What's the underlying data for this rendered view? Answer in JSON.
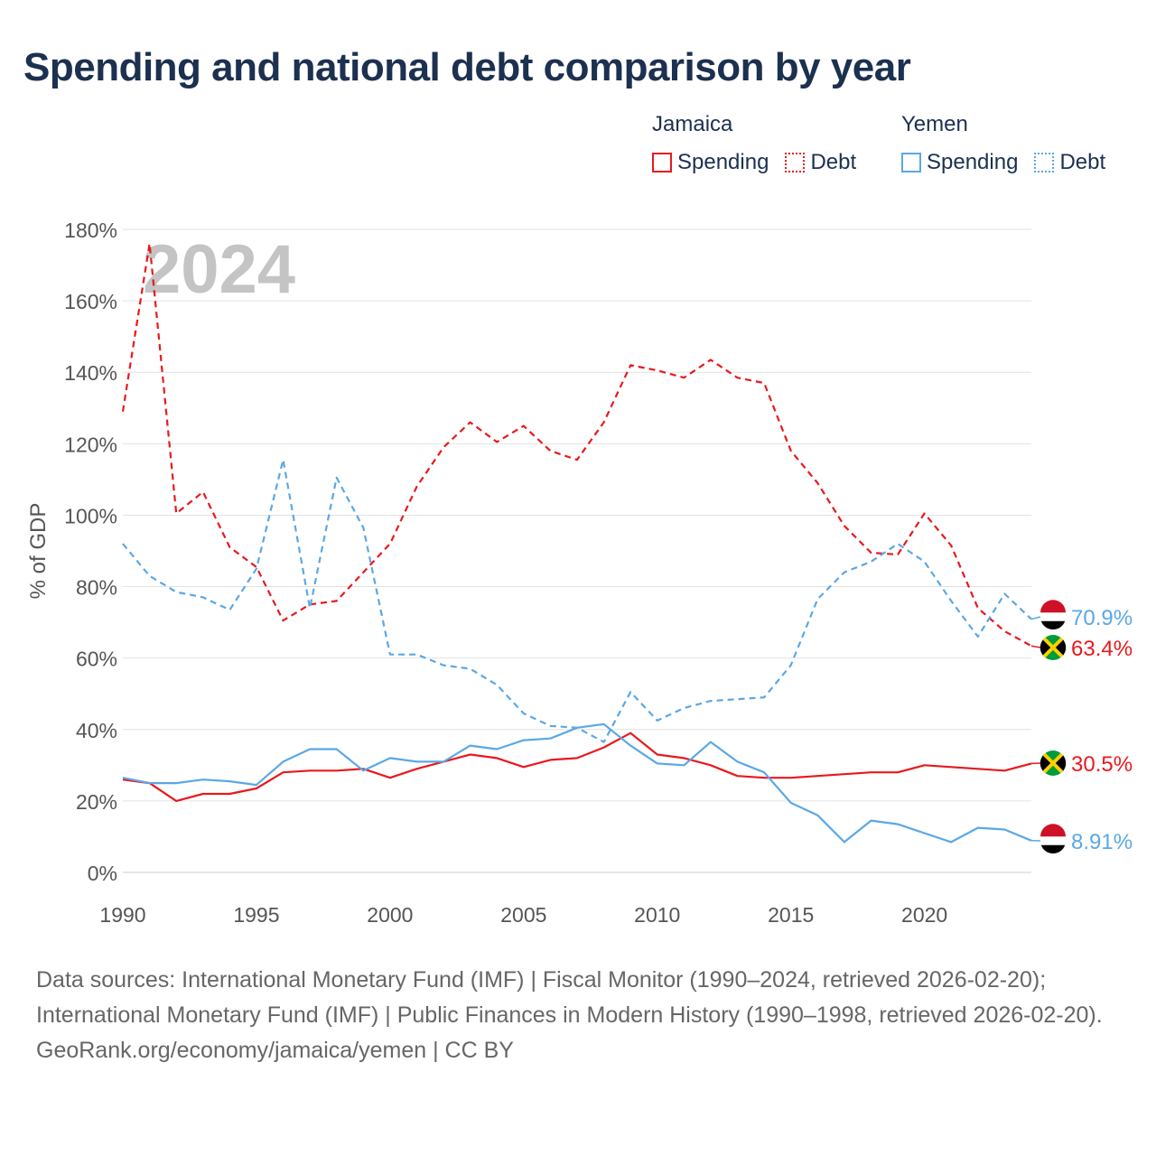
{
  "title": "Spending and national debt comparison by year",
  "legend": {
    "groups": [
      {
        "name": "Jamaica",
        "items": [
          {
            "label": "Spending"
          },
          {
            "label": "Debt"
          }
        ]
      },
      {
        "name": "Yemen",
        "items": [
          {
            "label": "Spending"
          },
          {
            "label": "Debt"
          }
        ]
      }
    ]
  },
  "colors": {
    "jamaica": "#e8191d",
    "yemen": "#5aa8e6",
    "grid": "#e2e2e2",
    "axis_text": "#555555",
    "year_watermark": "#c4c4c4"
  },
  "chart_data": {
    "type": "line",
    "watermark_year": "2024",
    "ylabel": "% of GDP",
    "xlim": [
      1990,
      2024
    ],
    "ylim": [
      0,
      180
    ],
    "yticks": [
      0,
      20,
      40,
      60,
      80,
      100,
      120,
      140,
      160,
      180
    ],
    "ytick_labels": [
      "0%",
      "20%",
      "40%",
      "60%",
      "80%",
      "100%",
      "120%",
      "140%",
      "160%",
      "180%"
    ],
    "xticks": [
      1990,
      1995,
      2000,
      2005,
      2010,
      2015,
      2020
    ],
    "xtick_labels": [
      "1990",
      "1995",
      "2000",
      "2005",
      "2010",
      "2015",
      "2020"
    ],
    "x": [
      1990,
      1991,
      1992,
      1993,
      1994,
      1995,
      1996,
      1997,
      1998,
      1999,
      2000,
      2001,
      2002,
      2003,
      2004,
      2005,
      2006,
      2007,
      2008,
      2009,
      2010,
      2011,
      2012,
      2013,
      2014,
      2015,
      2016,
      2017,
      2018,
      2019,
      2020,
      2021,
      2022,
      2023,
      2024
    ],
    "series": [
      {
        "name": "Jamaica Debt",
        "country": "jamaica",
        "style": "dashed",
        "values": [
          129,
          176,
          100.5,
          106.5,
          91,
          85.5,
          70.5,
          75,
          76,
          84,
          92,
          108,
          119,
          126,
          120.5,
          125,
          118,
          115.5,
          126,
          142,
          140.5,
          138.5,
          143.5,
          138.5,
          137,
          118,
          109,
          97,
          89.5,
          89,
          100.5,
          91.5,
          74,
          67.5,
          63.4
        ],
        "end_label": "63.4%"
      },
      {
        "name": "Yemen Debt",
        "country": "yemen",
        "style": "dashed",
        "values": [
          92,
          83,
          78.5,
          77,
          73.5,
          85,
          115.5,
          74,
          110.5,
          96.5,
          61,
          61,
          58,
          57,
          52.5,
          44.5,
          41,
          40.5,
          36.5,
          50.5,
          42.5,
          46,
          48,
          48.5,
          49,
          58,
          76.5,
          84,
          87,
          92,
          87,
          76,
          66,
          78,
          70.9
        ],
        "end_label": "70.9%"
      },
      {
        "name": "Jamaica Spending",
        "country": "jamaica",
        "style": "solid",
        "values": [
          26,
          25,
          20,
          22,
          22,
          23.5,
          28,
          28.5,
          28.5,
          29,
          26.5,
          29,
          31,
          33,
          32,
          29.5,
          31.5,
          32,
          35,
          39,
          33,
          32,
          30,
          27,
          26.5,
          26.5,
          27,
          27.5,
          28,
          28,
          30,
          29.5,
          29,
          28.5,
          30.5
        ],
        "end_label": "30.5%"
      },
      {
        "name": "Yemen Spending",
        "country": "yemen",
        "style": "solid",
        "values": [
          26.5,
          25,
          25,
          26,
          25.5,
          24.5,
          31,
          34.5,
          34.5,
          28.5,
          32,
          31,
          31,
          35.5,
          34.5,
          37,
          37.5,
          40.5,
          41.5,
          35.5,
          30.5,
          30,
          36.5,
          31,
          28,
          19.5,
          16,
          8.5,
          14.5,
          13.5,
          11,
          8.5,
          12.5,
          12,
          8.91
        ],
        "end_label": "8.91%"
      }
    ]
  },
  "footer": {
    "sources": "Data sources: International Monetary Fund (IMF) | Fiscal Monitor (1990–2024, retrieved 2026-02-20); International Monetary Fund (IMF) | Public Finances in Modern History (1990–1998, retrieved 2026-02-20).",
    "credit": "GeoRank.org/economy/jamaica/yemen | CC BY"
  }
}
